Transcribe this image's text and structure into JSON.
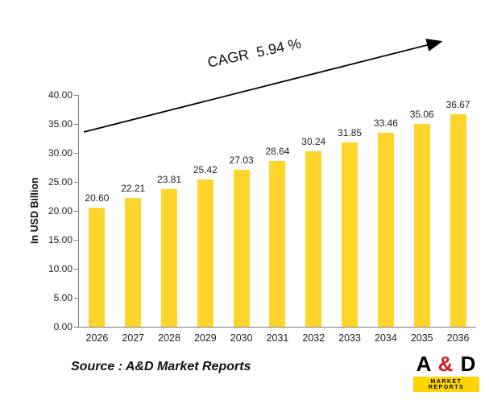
{
  "chart_data": {
    "type": "bar",
    "categories": [
      "2026",
      "2027",
      "2028",
      "2029",
      "2030",
      "2031",
      "2032",
      "2033",
      "2034",
      "2035",
      "2036"
    ],
    "values": [
      20.6,
      22.21,
      23.81,
      25.42,
      27.03,
      28.64,
      30.24,
      31.85,
      33.46,
      35.06,
      36.67
    ],
    "data_labels": [
      "20.60",
      "22.21",
      "23.81",
      "25.42",
      "27.03",
      "28.64",
      "30.24",
      "31.85",
      "33.46",
      "35.06",
      "36.67"
    ],
    "title": "",
    "xlabel": "",
    "ylabel": "In USD Billion",
    "ylim": [
      0,
      40
    ],
    "ytick_step": 5,
    "yticks": [
      "0.00",
      "5.00",
      "10.00",
      "15.00",
      "20.00",
      "25.00",
      "30.00",
      "35.00",
      "40.00"
    ],
    "grid": false,
    "legend": false,
    "bar_color": "#FFD42B",
    "annotation": "CAGR  5.94 %"
  },
  "footer": {
    "source": "Source : A&D Market Reports"
  },
  "logo": {
    "letter_a": "A",
    "ampersand": "&",
    "letter_d": "D",
    "subtitle": "MARKET REPORTS",
    "strip_color": "#FFD400"
  }
}
